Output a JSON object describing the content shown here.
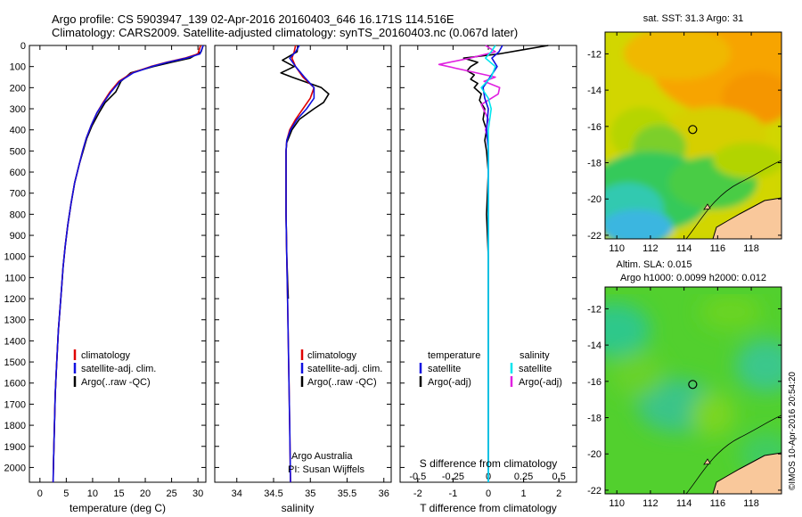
{
  "header": {
    "line1": "Argo profile: CS 5903947_139 02-Apr-2016 20160403_646 16.171S 114.516E",
    "line2": "Climatology: CARS2009. Satellite-adjusted climatology: synTS_20160403.nc (0.067d later)"
  },
  "colors": {
    "clim": "#e00000",
    "sat": "#1010e0",
    "argo": "#000000",
    "sal_sat": "#00e5ee",
    "sal_argo": "#e020e0",
    "land": "#f9c89b"
  },
  "chart_data": [
    {
      "type": "line",
      "id": "temperature",
      "xlabel": "temperature (deg C)",
      "ylabel": "",
      "xlim": [
        -2,
        31.5
      ],
      "ylim": [
        2070,
        0
      ],
      "xticks": [
        "0",
        "5",
        "10",
        "15",
        "20",
        "25",
        "30"
      ],
      "yticks": [
        "0",
        "100",
        "200",
        "300",
        "400",
        "500",
        "600",
        "700",
        "800",
        "900",
        "1000",
        "1100",
        "1200",
        "1300",
        "1400",
        "1500",
        "1600",
        "1700",
        "1800",
        "1900",
        "2000"
      ],
      "legend": [
        "climatology",
        "satellite-adj. clim.",
        "Argo(..raw -QC)"
      ],
      "series": [
        {
          "name": "climatology",
          "x": [
            30.5,
            30.0,
            27.5,
            24.0,
            21.0,
            17.5,
            15.0,
            13.3,
            12.0,
            10.8,
            9.7,
            8.8,
            8.1,
            7.5,
            6.6,
            5.9,
            5.3,
            4.8,
            4.4,
            4.1,
            3.8,
            3.5,
            3.3,
            3.1,
            2.9,
            2.8,
            2.7,
            2.6,
            2.55,
            2.5
          ],
          "y": [
            0,
            40,
            60,
            80,
            100,
            130,
            170,
            220,
            270,
            320,
            380,
            440,
            500,
            560,
            650,
            750,
            850,
            950,
            1050,
            1150,
            1250,
            1350,
            1450,
            1550,
            1650,
            1750,
            1850,
            1950,
            2010,
            2070
          ]
        },
        {
          "name": "satellite-adj. clim.",
          "x": [
            31.0,
            30.4,
            27.8,
            24.2,
            21.2,
            17.7,
            15.2,
            13.5,
            12.1,
            10.8,
            9.7,
            8.8,
            8.1,
            7.5,
            6.6,
            5.9,
            5.3,
            4.8,
            4.4,
            4.1,
            3.8,
            3.5,
            3.3,
            3.1,
            2.9,
            2.8,
            2.7,
            2.6,
            2.55,
            2.5
          ],
          "y": [
            0,
            40,
            60,
            80,
            100,
            130,
            170,
            220,
            270,
            320,
            380,
            440,
            500,
            560,
            650,
            750,
            850,
            950,
            1050,
            1150,
            1250,
            1350,
            1450,
            1550,
            1650,
            1750,
            1850,
            1950,
            2010,
            2070
          ]
        },
        {
          "name": "Argo(..raw -QC)",
          "x": [
            31.0,
            30.6,
            28.5,
            25.0,
            21.5,
            17.2,
            15.4,
            14.4,
            12.4,
            11.2,
            9.9,
            8.9,
            8.2,
            7.5,
            6.6,
            5.9,
            5.3,
            4.8,
            4.4,
            4.1,
            3.8,
            3.5,
            3.3,
            3.1,
            2.9,
            2.8,
            2.7,
            2.6,
            2.55
          ],
          "y": [
            0,
            30,
            60,
            80,
            100,
            130,
            170,
            220,
            270,
            320,
            380,
            440,
            500,
            560,
            650,
            750,
            850,
            950,
            1050,
            1150,
            1250,
            1350,
            1450,
            1550,
            1650,
            1750,
            1850,
            1950,
            2010
          ]
        }
      ]
    },
    {
      "type": "line",
      "id": "salinity",
      "xlabel": "salinity",
      "xlim": [
        33.7,
        36.1
      ],
      "ylim": [
        2070,
        0
      ],
      "xticks": [
        "34",
        "34.5",
        "35",
        "35.5",
        "36"
      ],
      "legend": [
        "climatology",
        "satellite-adj. clim.",
        "Argo(..raw -QC)"
      ],
      "annotation": [
        "Argo Australia",
        "PI: Susan Wijffels"
      ],
      "series": [
        {
          "name": "climatology",
          "x": [
            34.8,
            34.78,
            34.75,
            34.8,
            34.9,
            35.05,
            35.0,
            34.9,
            34.8,
            34.72,
            34.68,
            34.67,
            34.67,
            34.67,
            34.68,
            34.69,
            34.7,
            34.71,
            34.72,
            34.73
          ],
          "y": [
            0,
            30,
            60,
            100,
            150,
            200,
            250,
            300,
            350,
            400,
            450,
            500,
            600,
            800,
            1000,
            1200,
            1400,
            1600,
            1800,
            2070
          ]
        },
        {
          "name": "satellite-adj. clim.",
          "x": [
            34.85,
            34.8,
            34.72,
            34.8,
            34.92,
            35.05,
            35.05,
            34.95,
            34.82,
            34.73,
            34.68,
            34.67,
            34.67,
            34.67,
            34.68,
            34.69,
            34.7,
            34.71,
            34.72,
            34.73
          ],
          "y": [
            0,
            30,
            60,
            100,
            150,
            200,
            250,
            300,
            350,
            400,
            450,
            500,
            600,
            800,
            1000,
            1200,
            1400,
            1600,
            1800,
            2070
          ]
        },
        {
          "name": "Argo(..raw -QC)",
          "x": [
            34.83,
            34.82,
            34.62,
            34.78,
            34.6,
            34.75,
            35.15,
            35.25,
            35.18,
            35.05,
            34.85,
            34.75,
            34.68,
            34.67,
            34.67,
            34.67,
            34.68,
            34.7
          ],
          "y": [
            0,
            30,
            70,
            100,
            130,
            150,
            200,
            230,
            270,
            300,
            350,
            400,
            460,
            500,
            600,
            800,
            1000,
            1200
          ]
        }
      ]
    },
    {
      "type": "line",
      "id": "difference",
      "xlabel": "T difference from climatology",
      "x2label": "S difference from climatology",
      "xlim": [
        -2.5,
        2.5
      ],
      "x2lim": [
        -0.625,
        0.625
      ],
      "ylim": [
        2070,
        0
      ],
      "xticks": [
        "-2",
        "-1",
        "0",
        "1",
        "2"
      ],
      "x2ticks": [
        "-0.5",
        "-0.25",
        "0",
        "0.25",
        "0.5"
      ],
      "legend": {
        "temperature": [
          "temperature",
          "satellite",
          "Argo(-adj)"
        ],
        "salinity": [
          "salinity",
          "satellite",
          "Argo(-adj)"
        ]
      },
      "series": [
        {
          "name": "temperature satellite",
          "axis": "T",
          "x": [
            0.4,
            0.3,
            0.1,
            0.25,
            0.05,
            -0.15,
            -0.1,
            0.0,
            -0.05,
            0.0,
            0.0,
            0.0,
            0.0,
            0.0
          ],
          "y": [
            0,
            30,
            60,
            100,
            150,
            200,
            250,
            300,
            400,
            500,
            700,
            1000,
            1500,
            2070
          ]
        },
        {
          "name": "temperature Argo(-adj)",
          "axis": "T",
          "x": [
            1.7,
            1.0,
            0.3,
            -0.7,
            -0.3,
            -0.5,
            -0.6,
            -0.4,
            -0.5,
            -0.3,
            -0.4,
            -0.2,
            -0.25,
            -0.1,
            -0.15,
            -0.05,
            -0.1,
            -0.05,
            0.0,
            -0.05,
            0.0,
            0.0,
            0.0
          ],
          "y": [
            0,
            20,
            40,
            60,
            80,
            100,
            120,
            140,
            160,
            180,
            200,
            230,
            260,
            300,
            350,
            400,
            450,
            500,
            600,
            800,
            1000,
            1500,
            2010
          ]
        },
        {
          "name": "salinity satellite",
          "axis": "S",
          "x": [
            0.05,
            0.02,
            -0.02,
            0.05,
            0.02,
            -0.05,
            0.0,
            0.02,
            0.0,
            0.0,
            0.0,
            0.0,
            0.0
          ],
          "y": [
            0,
            30,
            60,
            100,
            150,
            200,
            250,
            300,
            400,
            500,
            800,
            1500,
            2070
          ]
        },
        {
          "name": "salinity Argo(-adj)",
          "axis": "S",
          "x": [
            -0.02,
            0.05,
            -0.13,
            -0.35,
            -0.15,
            0.05,
            -0.03,
            0.08,
            0.07,
            -0.05,
            0.0,
            -0.02,
            0.0,
            0.0,
            0.0
          ],
          "y": [
            0,
            30,
            60,
            90,
            120,
            150,
            170,
            200,
            230,
            280,
            350,
            400,
            450,
            500,
            700
          ]
        }
      ]
    },
    {
      "type": "heatmap",
      "id": "sst_map",
      "title": "sat. SST: 31.3 Argo: 31",
      "xlim": [
        109.3,
        119.8
      ],
      "ylim": [
        -22.2,
        -10.8
      ],
      "xticks": [
        "110",
        "112",
        "114",
        "116",
        "118"
      ],
      "yticks": [
        "-12",
        "-14",
        "-16",
        "-18",
        "-20",
        "-22"
      ],
      "marker": [
        114.516,
        -16.171
      ]
    },
    {
      "type": "heatmap",
      "id": "sla_map",
      "title": "Altim. SLA: 0.015",
      "subtitle": "Argo h1000: 0.0099 h2000: 0.012",
      "xlim": [
        109.3,
        119.8
      ],
      "ylim": [
        -22.2,
        -10.8
      ],
      "xticks": [
        "110",
        "112",
        "114",
        "116",
        "118"
      ],
      "yticks": [
        "-12",
        "-14",
        "-16",
        "-18",
        "-20",
        "-22"
      ],
      "marker": [
        114.516,
        -16.171
      ]
    }
  ],
  "footer": {
    "stamp": "©IMOS 10-Apr-2016 20:54:20"
  }
}
